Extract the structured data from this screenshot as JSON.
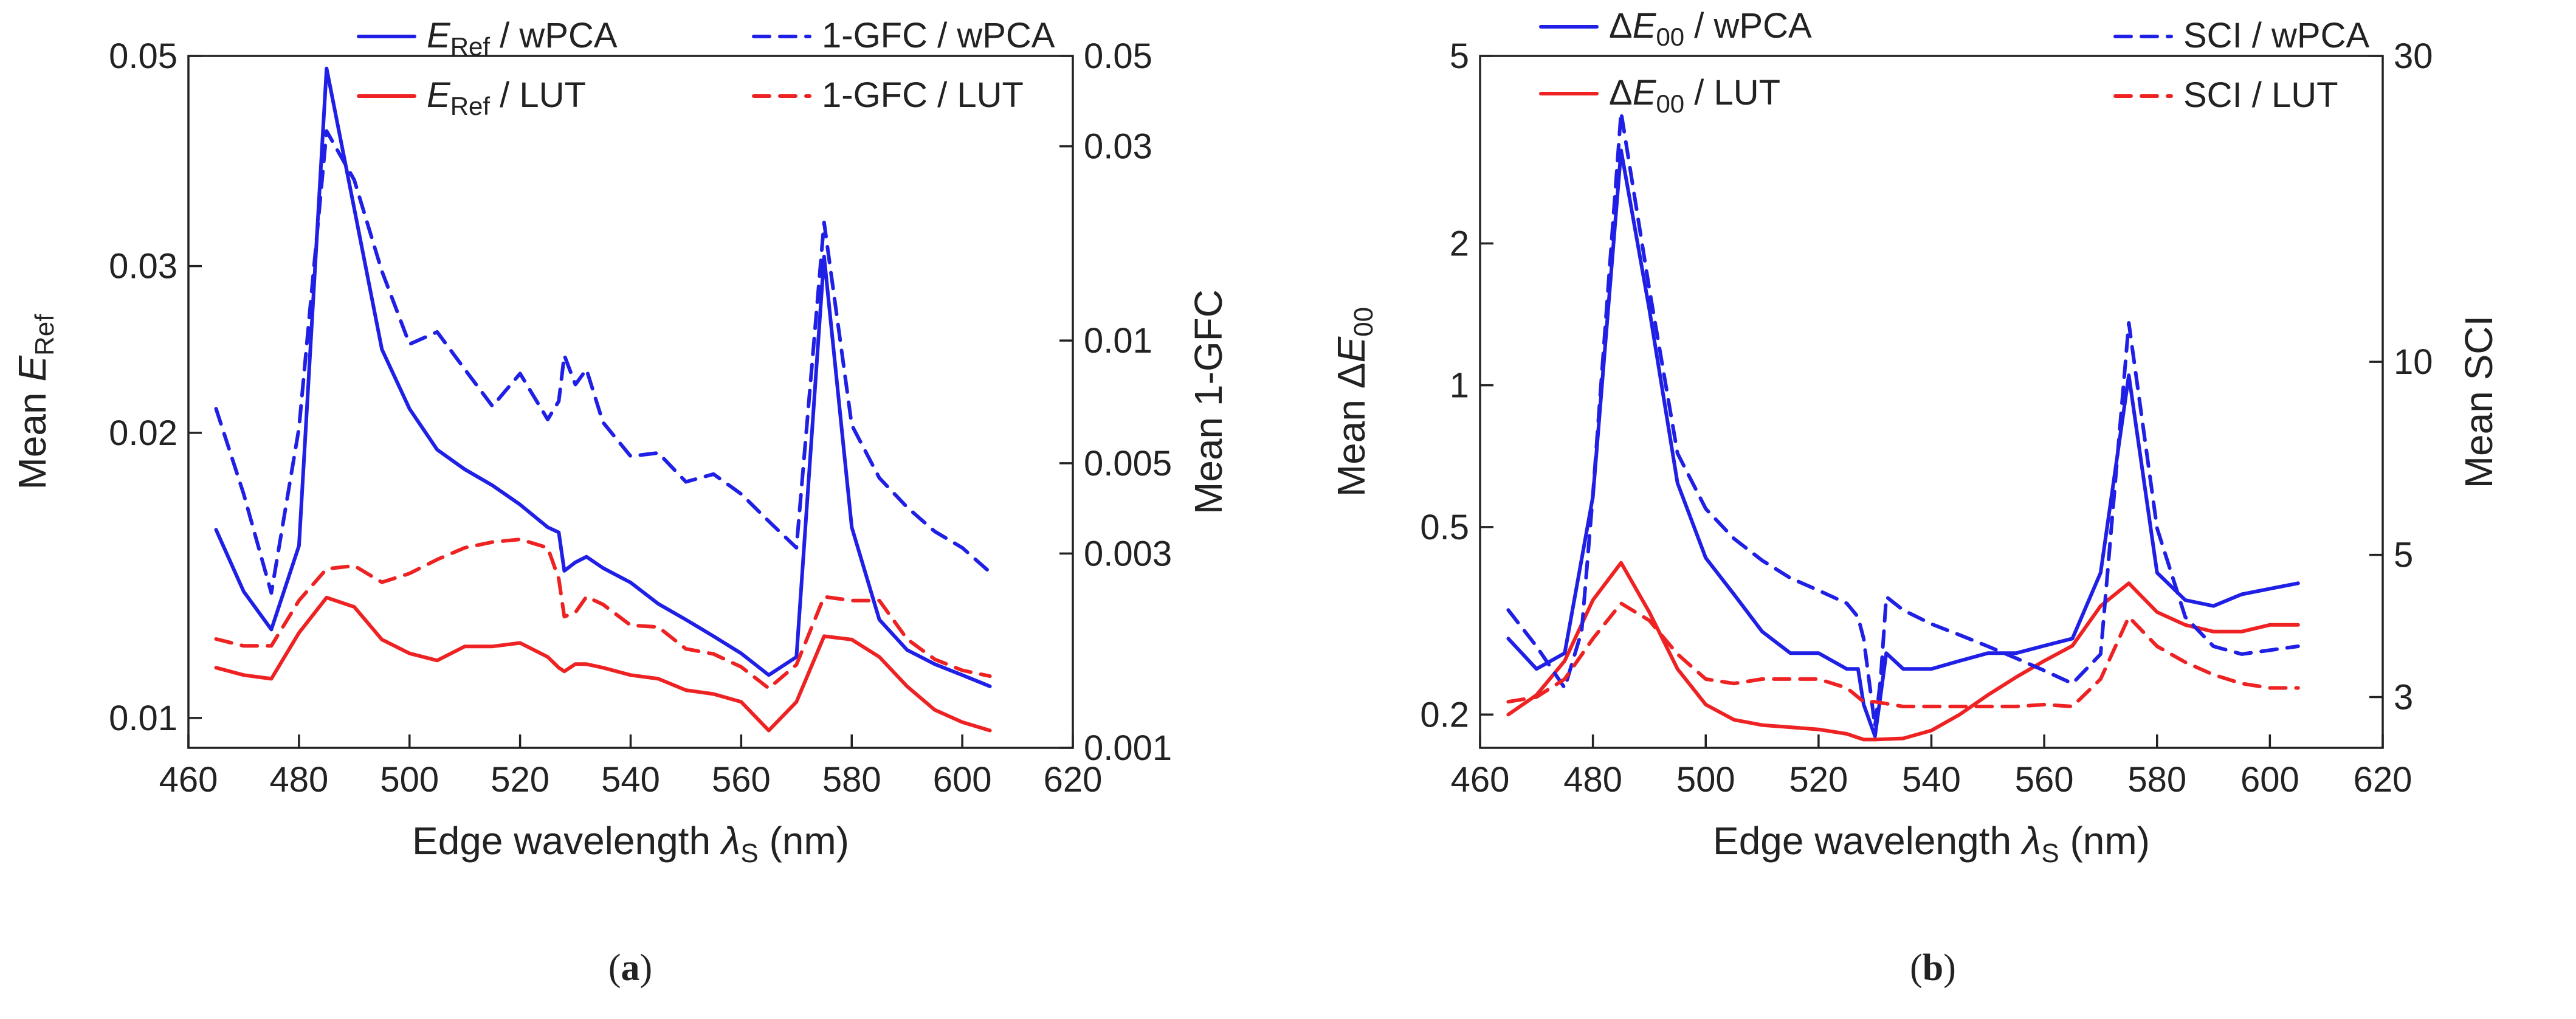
{
  "colors": {
    "wpca": "#1f1fe6",
    "lut": "#ee2222",
    "axis": "#222222"
  },
  "chart_data": [
    {
      "type": "line",
      "panel_label": "a",
      "xlabel": "Edge wavelength λS (nm)",
      "xlabel_main": "Edge wavelength ",
      "xlabel_sym": "λ",
      "xlabel_sub": "S",
      "xlabel_unit": " (nm)",
      "xlim": [
        460,
        620
      ],
      "xticks": [
        460,
        480,
        500,
        520,
        540,
        560,
        580,
        600,
        620
      ],
      "left_axis": {
        "label": "Mean ERef",
        "label_main": "Mean ",
        "label_sym": "E",
        "label_sub": "Ref",
        "scale": "log",
        "lim": [
          0.0093,
          0.05
        ],
        "ticks": [
          0.01,
          0.02,
          0.03,
          0.05
        ],
        "tick_labels": [
          "0.01",
          "0.02",
          "0.03",
          "0.05"
        ]
      },
      "right_axis": {
        "label": "Mean 1-GFC",
        "scale": "log",
        "lim": [
          0.001,
          0.05
        ],
        "ticks": [
          0.001,
          0.003,
          0.005,
          0.01,
          0.03,
          0.05
        ],
        "tick_labels": [
          "0.001",
          "0.003",
          "0.005",
          "0.01",
          "0.03",
          "0.05"
        ]
      },
      "series": [
        {
          "name": "ERef / wPCA",
          "legend_sym": "E",
          "legend_sub": "Ref",
          "legend_rest": " / wPCA",
          "axis": "left",
          "color": "#1f1fe6",
          "dash": "solid",
          "x": [
            465,
            470,
            475,
            480,
            485,
            490,
            495,
            500,
            505,
            510,
            515,
            520,
            525,
            527,
            528,
            530,
            532,
            535,
            540,
            545,
            550,
            555,
            560,
            565,
            570,
            575,
            580,
            585,
            590,
            595,
            600,
            605
          ],
          "y": [
            0.0158,
            0.0136,
            0.0124,
            0.0152,
            0.0485,
            0.0345,
            0.0245,
            0.0212,
            0.0192,
            0.0183,
            0.0176,
            0.0168,
            0.0159,
            0.0157,
            0.0143,
            0.0146,
            0.0148,
            0.0144,
            0.0139,
            0.0132,
            0.0127,
            0.0122,
            0.0117,
            0.0111,
            0.0116,
            0.0307,
            0.0159,
            0.0127,
            0.0118,
            0.0114,
            0.0111,
            0.0108
          ]
        },
        {
          "name": "ERef / LUT",
          "legend_sym": "E",
          "legend_sub": "Ref",
          "legend_rest": " / LUT",
          "axis": "left",
          "color": "#ee2222",
          "dash": "solid",
          "x": [
            465,
            470,
            475,
            480,
            485,
            490,
            495,
            500,
            505,
            510,
            515,
            520,
            525,
            527,
            528,
            530,
            532,
            535,
            540,
            545,
            550,
            555,
            560,
            565,
            570,
            575,
            580,
            585,
            590,
            595,
            600,
            605
          ],
          "y": [
            0.0113,
            0.0111,
            0.011,
            0.0123,
            0.0134,
            0.0131,
            0.0121,
            0.0117,
            0.0115,
            0.0119,
            0.0119,
            0.012,
            0.0116,
            0.0113,
            0.0112,
            0.0114,
            0.0114,
            0.0113,
            0.0111,
            0.011,
            0.0107,
            0.0106,
            0.0104,
            0.0097,
            0.0104,
            0.0122,
            0.0121,
            0.0116,
            0.0108,
            0.0102,
            0.0099,
            0.0097
          ]
        },
        {
          "name": "1-GFC / wPCA",
          "axis": "right",
          "color": "#1f1fe6",
          "dash": "dashed",
          "x": [
            465,
            470,
            475,
            480,
            485,
            490,
            495,
            500,
            505,
            510,
            515,
            520,
            525,
            527,
            528,
            530,
            532,
            535,
            540,
            545,
            550,
            555,
            560,
            565,
            570,
            575,
            580,
            585,
            590,
            595,
            600,
            605
          ],
          "y": [
            0.0068,
            0.0042,
            0.0024,
            0.0061,
            0.0327,
            0.0248,
            0.0148,
            0.0098,
            0.0105,
            0.0085,
            0.0069,
            0.0083,
            0.0064,
            0.0071,
            0.0092,
            0.0078,
            0.0085,
            0.0063,
            0.0052,
            0.0053,
            0.0045,
            0.0047,
            0.0042,
            0.0036,
            0.0031,
            0.0195,
            0.0062,
            0.0046,
            0.0039,
            0.0034,
            0.0031,
            0.0027
          ]
        },
        {
          "name": "1-GFC / LUT",
          "axis": "right",
          "color": "#ee2222",
          "dash": "dashed",
          "x": [
            465,
            470,
            475,
            480,
            485,
            490,
            495,
            500,
            505,
            510,
            515,
            520,
            525,
            527,
            528,
            530,
            532,
            535,
            540,
            545,
            550,
            555,
            560,
            565,
            570,
            575,
            580,
            585,
            590,
            595,
            600,
            605
          ],
          "y": [
            0.00185,
            0.00178,
            0.00178,
            0.0023,
            0.00275,
            0.0028,
            0.00255,
            0.00268,
            0.0029,
            0.0031,
            0.0032,
            0.00325,
            0.0031,
            0.0026,
            0.0021,
            0.00215,
            0.00235,
            0.00225,
            0.002,
            0.00198,
            0.00175,
            0.0017,
            0.00158,
            0.0014,
            0.0016,
            0.00235,
            0.0023,
            0.0023,
            0.00185,
            0.00165,
            0.00155,
            0.0015
          ]
        }
      ]
    },
    {
      "type": "line",
      "panel_label": "b",
      "xlabel": "Edge wavelength λS (nm)",
      "xlabel_main": "Edge wavelength ",
      "xlabel_sym": "λ",
      "xlabel_sub": "S",
      "xlabel_unit": " (nm)",
      "xlim": [
        460,
        620
      ],
      "xticks": [
        460,
        480,
        500,
        520,
        540,
        560,
        580,
        600,
        620
      ],
      "left_axis": {
        "label": "Mean ΔE00",
        "label_main": "Mean Δ",
        "label_sym": "E",
        "label_sub": "00",
        "scale": "log",
        "lim": [
          0.17,
          5
        ],
        "ticks": [
          0.2,
          0.5,
          1,
          2,
          5
        ],
        "tick_labels": [
          "0.2",
          "0.5",
          "1",
          "2",
          "5"
        ]
      },
      "right_axis": {
        "label": "Mean SCI",
        "scale": "log",
        "lim": [
          2.5,
          30
        ],
        "ticks": [
          3,
          5,
          10,
          30
        ],
        "tick_labels": [
          "3",
          "5",
          "10",
          "30"
        ]
      },
      "series": [
        {
          "name": "ΔE00 / wPCA",
          "legend_pre": "Δ",
          "legend_sym": "E",
          "legend_sub": "00",
          "legend_rest": " / wPCA",
          "axis": "left",
          "color": "#1f1fe6",
          "dash": "solid",
          "x": [
            465,
            470,
            475,
            480,
            485,
            490,
            495,
            500,
            505,
            510,
            515,
            520,
            525,
            527,
            528,
            530,
            531,
            532,
            535,
            540,
            545,
            550,
            555,
            560,
            565,
            570,
            575,
            580,
            585,
            590,
            595,
            600,
            605
          ],
          "y": [
            0.29,
            0.25,
            0.27,
            0.58,
            3.15,
            1.45,
            0.62,
            0.43,
            0.36,
            0.3,
            0.27,
            0.27,
            0.25,
            0.25,
            0.21,
            0.18,
            0.22,
            0.27,
            0.25,
            0.25,
            0.26,
            0.27,
            0.27,
            0.28,
            0.29,
            0.4,
            1.05,
            0.4,
            0.35,
            0.34,
            0.36,
            0.37,
            0.38
          ]
        },
        {
          "name": "ΔE00 / LUT",
          "legend_pre": "Δ",
          "legend_sym": "E",
          "legend_sub": "00",
          "legend_rest": " / LUT",
          "axis": "left",
          "color": "#ee2222",
          "dash": "solid",
          "x": [
            465,
            470,
            475,
            480,
            485,
            490,
            495,
            500,
            505,
            510,
            515,
            520,
            525,
            528,
            530,
            535,
            540,
            545,
            550,
            555,
            560,
            565,
            570,
            575,
            580,
            585,
            590,
            595,
            600,
            605
          ],
          "y": [
            0.2,
            0.22,
            0.26,
            0.35,
            0.42,
            0.33,
            0.25,
            0.21,
            0.195,
            0.19,
            0.188,
            0.186,
            0.182,
            0.177,
            0.177,
            0.178,
            0.185,
            0.2,
            0.22,
            0.24,
            0.26,
            0.28,
            0.34,
            0.38,
            0.33,
            0.31,
            0.3,
            0.3,
            0.31,
            0.31
          ]
        },
        {
          "name": "SCI / wPCA",
          "axis": "right",
          "color": "#1f1fe6",
          "dash": "dashed",
          "x": [
            465,
            470,
            475,
            478,
            480,
            485,
            490,
            495,
            500,
            505,
            510,
            515,
            520,
            525,
            527,
            528,
            530,
            531,
            532,
            535,
            540,
            545,
            550,
            555,
            560,
            565,
            570,
            575,
            580,
            585,
            590,
            595,
            600,
            605
          ],
          "y": [
            4.1,
            3.6,
            3.1,
            3.8,
            6.2,
            24.5,
            13.0,
            7.2,
            5.9,
            5.3,
            4.9,
            4.6,
            4.4,
            4.2,
            4.0,
            3.7,
            2.7,
            3.2,
            4.3,
            4.1,
            3.9,
            3.75,
            3.6,
            3.45,
            3.3,
            3.15,
            3.5,
            11.5,
            5.5,
            4.0,
            3.6,
            3.5,
            3.55,
            3.6
          ]
        },
        {
          "name": "SCI / LUT",
          "axis": "right",
          "color": "#ee2222",
          "dash": "dashed",
          "x": [
            465,
            470,
            475,
            480,
            485,
            490,
            495,
            500,
            505,
            510,
            515,
            520,
            525,
            528,
            530,
            535,
            540,
            545,
            550,
            555,
            560,
            565,
            570,
            575,
            580,
            585,
            590,
            595,
            600,
            605
          ],
          "y": [
            2.95,
            3.0,
            3.2,
            3.7,
            4.2,
            3.95,
            3.5,
            3.2,
            3.15,
            3.2,
            3.2,
            3.2,
            3.1,
            2.95,
            2.95,
            2.9,
            2.9,
            2.9,
            2.9,
            2.9,
            2.92,
            2.9,
            3.2,
            4.0,
            3.6,
            3.4,
            3.25,
            3.15,
            3.1,
            3.1
          ]
        }
      ]
    }
  ]
}
